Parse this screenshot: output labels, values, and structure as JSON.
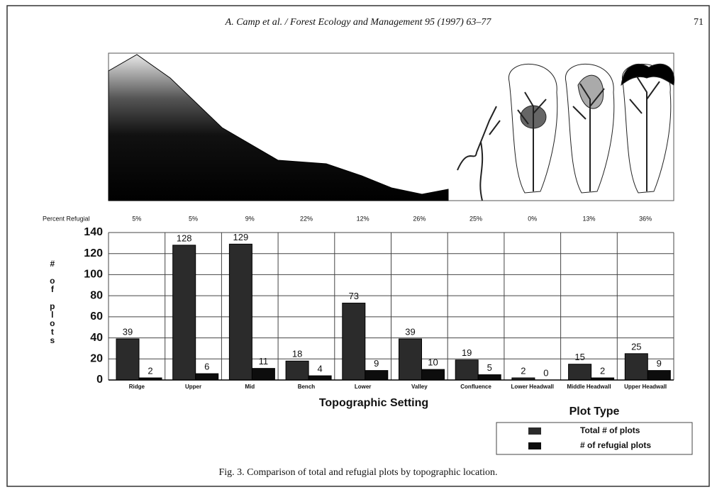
{
  "header": {
    "citation": "A. Camp et al. / Forest Ecology and Management 95 (1997) 63–77",
    "page": "71"
  },
  "chart_data": {
    "type": "bar",
    "percent_title": "Percent Refugial",
    "percent_refugial": [
      "5%",
      "5%",
      "9%",
      "22%",
      "12%",
      "26%",
      "25%",
      "0%",
      "13%",
      "36%"
    ],
    "categories": [
      "Ridge",
      "Upper",
      "Mid",
      "Bench",
      "Lower",
      "Valley",
      "Confluence",
      "Lower Headwall",
      "Middle Headwall",
      "Upper Headwall"
    ],
    "series": [
      {
        "name": "Total # of plots",
        "color": "#2b2b2b",
        "values": [
          39,
          128,
          129,
          18,
          73,
          39,
          19,
          2,
          15,
          25
        ]
      },
      {
        "name": "# of refugial plots",
        "color": "#0d0d0d",
        "values": [
          2,
          6,
          11,
          4,
          9,
          10,
          5,
          0,
          2,
          9
        ]
      }
    ],
    "ylim": [
      0,
      140
    ],
    "yticks": [
      0,
      20,
      40,
      60,
      80,
      100,
      120,
      140
    ],
    "grid": true,
    "ylabel": "# of plots",
    "xlabel": "Topographic Setting",
    "legend_title": "Plot Type",
    "legend": "bottom-right"
  },
  "caption": "Fig. 3. Comparison of total and refugial plots by topographic location."
}
